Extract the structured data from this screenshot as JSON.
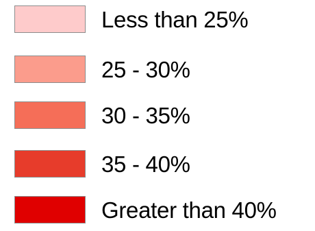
{
  "legend": {
    "items": [
      {
        "label": "Less than 25%",
        "color": "#fecbcb"
      },
      {
        "label": "25 - 30%",
        "color": "#fb9c8c"
      },
      {
        "label": "30 - 35%",
        "color": "#f56e58"
      },
      {
        "label": "35 - 40%",
        "color": "#e73c2b"
      },
      {
        "label": "Greater than 40%",
        "color": "#e00000"
      }
    ]
  }
}
